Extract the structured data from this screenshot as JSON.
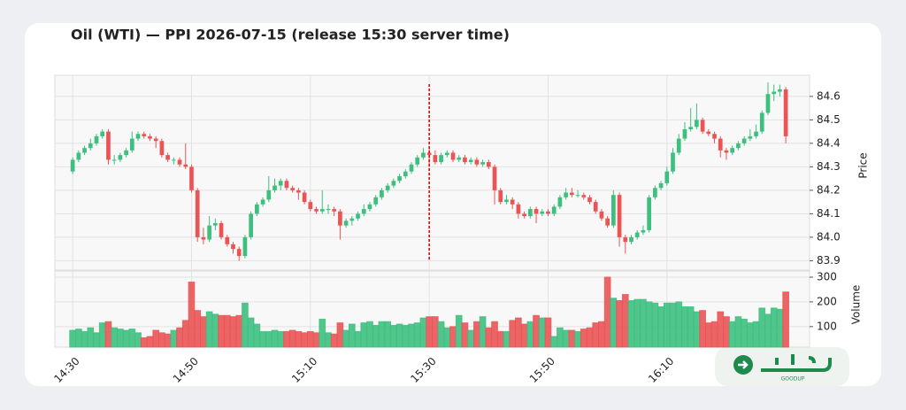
{
  "chart_data": {
    "type": "candlestick",
    "title": "Oil (WTI) — PPI 2026-07-15 (release 15:30 server time)",
    "categories": [
      "14:30",
      null,
      null,
      null,
      null,
      null,
      null,
      null,
      null,
      null,
      null,
      null,
      null,
      null,
      null,
      null,
      null,
      null,
      null,
      null,
      "14:50",
      null,
      null,
      null,
      null,
      null,
      null,
      null,
      null,
      null,
      null,
      null,
      null,
      null,
      null,
      null,
      null,
      null,
      null,
      null,
      "15:10",
      null,
      null,
      null,
      null,
      null,
      null,
      null,
      null,
      null,
      null,
      null,
      null,
      null,
      null,
      null,
      null,
      null,
      null,
      null,
      "15:30",
      null,
      null,
      null,
      null,
      null,
      null,
      null,
      null,
      null,
      null,
      null,
      null,
      null,
      null,
      null,
      null,
      null,
      null,
      null,
      "15:50",
      null,
      null,
      null,
      null,
      null,
      null,
      null,
      null,
      null,
      null,
      null,
      null,
      null,
      null,
      null,
      null,
      null,
      null,
      null,
      "16:10",
      null,
      null,
      null,
      null,
      null,
      null,
      null,
      null,
      null,
      null,
      null,
      null,
      null,
      null,
      null,
      null,
      null,
      null,
      null,
      null
    ],
    "open": [
      84.28,
      84.33,
      84.36,
      84.38,
      84.4,
      84.43,
      84.45,
      84.33,
      84.33,
      84.35,
      84.37,
      84.42,
      84.44,
      84.43,
      84.42,
      84.41,
      84.35,
      84.33,
      84.33,
      84.31,
      84.3,
      84.2,
      84.0,
      83.99,
      84.05,
      84.06,
      84.0,
      83.97,
      83.95,
      83.92,
      84.0,
      84.1,
      84.14,
      84.16,
      84.2,
      84.22,
      84.24,
      84.21,
      84.2,
      84.19,
      84.15,
      84.12,
      84.11,
      84.12,
      84.12,
      84.11,
      84.05,
      84.07,
      84.08,
      84.1,
      84.12,
      84.14,
      84.17,
      84.2,
      84.22,
      84.24,
      84.26,
      84.28,
      84.31,
      84.34,
      84.36,
      84.35,
      84.32,
      84.35,
      84.36,
      84.33,
      84.34,
      84.32,
      84.33,
      84.31,
      84.32,
      84.3,
      84.2,
      84.15,
      84.16,
      84.14,
      84.1,
      84.09,
      84.12,
      84.1,
      84.11,
      84.1,
      84.13,
      84.17,
      84.19,
      84.18,
      84.18,
      84.17,
      84.15,
      84.11,
      84.08,
      84.05,
      84.18,
      84.0,
      83.98,
      84.0,
      84.02,
      84.03,
      84.17,
      84.21,
      84.23,
      84.28,
      84.36,
      84.42,
      84.46,
      84.47,
      84.5,
      84.45,
      84.44,
      84.42,
      84.37,
      84.36,
      84.38,
      84.4,
      84.42,
      84.43,
      84.45,
      84.53,
      84.61,
      84.62,
      84.63
    ],
    "high": [
      84.34,
      84.37,
      84.39,
      84.42,
      84.44,
      84.46,
      84.46,
      84.35,
      84.36,
      84.38,
      84.45,
      84.45,
      84.45,
      84.44,
      84.43,
      84.42,
      84.36,
      84.34,
      84.34,
      84.4,
      84.31,
      84.21,
      84.04,
      84.09,
      84.08,
      84.07,
      84.01,
      83.98,
      83.96,
      84.01,
      84.11,
      84.15,
      84.17,
      84.26,
      84.25,
      84.25,
      84.25,
      84.22,
      84.21,
      84.2,
      84.16,
      84.13,
      84.2,
      84.14,
      84.13,
      84.12,
      84.08,
      84.09,
      84.11,
      84.14,
      84.15,
      84.18,
      84.21,
      84.23,
      84.25,
      84.27,
      84.29,
      84.32,
      84.35,
      84.38,
      84.38,
      84.37,
      84.36,
      84.37,
      84.37,
      84.35,
      84.35,
      84.34,
      84.34,
      84.33,
      84.33,
      84.31,
      84.21,
      84.18,
      84.17,
      84.15,
      84.11,
      84.13,
      84.13,
      84.12,
      84.12,
      84.14,
      84.18,
      84.21,
      84.21,
      84.2,
      84.19,
      84.18,
      84.16,
      84.12,
      84.09,
      84.2,
      84.19,
      84.01,
      84.01,
      84.03,
      84.05,
      84.18,
      84.22,
      84.24,
      84.3,
      84.38,
      84.44,
      84.49,
      84.55,
      84.57,
      84.51,
      84.46,
      84.45,
      84.43,
      84.38,
      84.39,
      84.41,
      84.43,
      84.46,
      84.48,
      84.54,
      84.66,
      84.65,
      84.65,
      84.64
    ],
    "low": [
      84.27,
      84.32,
      84.35,
      84.37,
      84.39,
      84.42,
      84.31,
      84.31,
      84.32,
      84.34,
      84.36,
      84.41,
      84.42,
      84.41,
      84.38,
      84.34,
      84.32,
      84.31,
      84.3,
      84.29,
      84.19,
      83.98,
      83.97,
      83.98,
      84.03,
      83.99,
      83.96,
      83.93,
      83.9,
      83.91,
      83.99,
      84.09,
      84.13,
      84.15,
      84.19,
      84.2,
      84.2,
      84.19,
      84.16,
      84.14,
      84.11,
      84.1,
      84.1,
      84.1,
      84.09,
      83.99,
      84.04,
      84.05,
      84.07,
      84.09,
      84.11,
      84.13,
      84.16,
      84.19,
      84.21,
      84.23,
      84.25,
      84.27,
      84.3,
      84.33,
      84.3,
      84.31,
      84.31,
      84.34,
      84.32,
      84.32,
      84.31,
      84.31,
      84.3,
      84.3,
      84.29,
      84.14,
      84.14,
      84.14,
      84.12,
      84.08,
      84.08,
      84.08,
      84.06,
      84.09,
      84.09,
      84.09,
      84.12,
      84.16,
      84.17,
      84.17,
      84.16,
      84.14,
      84.1,
      84.07,
      84.04,
      84.04,
      83.96,
      83.93,
      83.97,
      83.99,
      84.01,
      84.02,
      84.16,
      84.2,
      84.22,
      84.27,
      84.35,
      84.41,
      84.45,
      84.46,
      84.44,
      84.43,
      84.4,
      84.34,
      84.33,
      84.35,
      84.37,
      84.39,
      84.41,
      84.42,
      84.44,
      84.52,
      84.58,
      84.6,
      84.4
    ],
    "close": [
      84.33,
      84.36,
      84.38,
      84.4,
      84.43,
      84.45,
      84.33,
      84.33,
      84.35,
      84.37,
      84.42,
      84.44,
      84.43,
      84.42,
      84.41,
      84.35,
      84.33,
      84.33,
      84.31,
      84.3,
      84.2,
      84.0,
      83.99,
      84.05,
      84.06,
      84.0,
      83.97,
      83.95,
      83.92,
      84.0,
      84.1,
      84.14,
      84.16,
      84.2,
      84.22,
      84.24,
      84.21,
      84.2,
      84.19,
      84.15,
      84.12,
      84.11,
      84.12,
      84.12,
      84.11,
      84.05,
      84.07,
      84.08,
      84.1,
      84.12,
      84.14,
      84.17,
      84.2,
      84.22,
      84.24,
      84.26,
      84.28,
      84.31,
      84.34,
      84.36,
      84.35,
      84.32,
      84.35,
      84.36,
      84.33,
      84.34,
      84.32,
      84.33,
      84.31,
      84.32,
      84.3,
      84.2,
      84.15,
      84.16,
      84.14,
      84.1,
      84.09,
      84.12,
      84.1,
      84.11,
      84.1,
      84.13,
      84.17,
      84.19,
      84.18,
      84.18,
      84.17,
      84.15,
      84.11,
      84.08,
      84.05,
      84.18,
      84.0,
      83.98,
      84.0,
      84.02,
      84.03,
      84.17,
      84.21,
      84.23,
      84.28,
      84.36,
      84.42,
      84.46,
      84.47,
      84.5,
      84.45,
      84.44,
      84.42,
      84.37,
      84.36,
      84.38,
      84.4,
      84.42,
      84.43,
      84.45,
      84.53,
      84.61,
      84.62,
      84.63,
      84.43
    ],
    "up_color": "#3dbf7f",
    "down_color": "#ea5455",
    "ylim": [
      83.86,
      84.69
    ],
    "yticks": [
      83.9,
      {
        "value": 84,
        "label": "84.0"
      },
      84.1,
      84.2,
      84.3,
      84.4,
      84.5,
      84.6
    ],
    "ylabel": "Price",
    "grid": true,
    "volume": {
      "values": [
        85,
        90,
        80,
        95,
        75,
        115,
        120,
        95,
        90,
        85,
        90,
        75,
        55,
        60,
        85,
        75,
        70,
        85,
        95,
        125,
        280,
        165,
        140,
        160,
        150,
        145,
        145,
        140,
        145,
        195,
        135,
        110,
        80,
        80,
        85,
        80,
        80,
        85,
        80,
        75,
        80,
        75,
        130,
        75,
        70,
        115,
        85,
        110,
        80,
        115,
        120,
        105,
        120,
        120,
        105,
        110,
        105,
        110,
        115,
        135,
        140,
        140,
        120,
        95,
        100,
        145,
        115,
        85,
        120,
        140,
        95,
        120,
        80,
        80,
        125,
        135,
        110,
        120,
        145,
        135,
        135,
        60,
        95,
        85,
        85,
        80,
        90,
        95,
        115,
        120,
        300,
        215,
        205,
        230,
        205,
        210,
        210,
        200,
        195,
        180,
        195,
        195,
        200,
        180,
        180,
        160,
        165,
        115,
        120,
        160,
        140,
        120,
        140,
        130,
        115,
        120,
        175,
        150,
        175,
        170,
        240
      ],
      "ylim": [
        17,
        325
      ],
      "yticks": [
        100,
        200,
        300
      ],
      "ylabel": "Volume"
    },
    "event_line": {
      "at": "15:30",
      "color": "#cc0000"
    }
  },
  "logo": {
    "text": "GOODUP"
  }
}
